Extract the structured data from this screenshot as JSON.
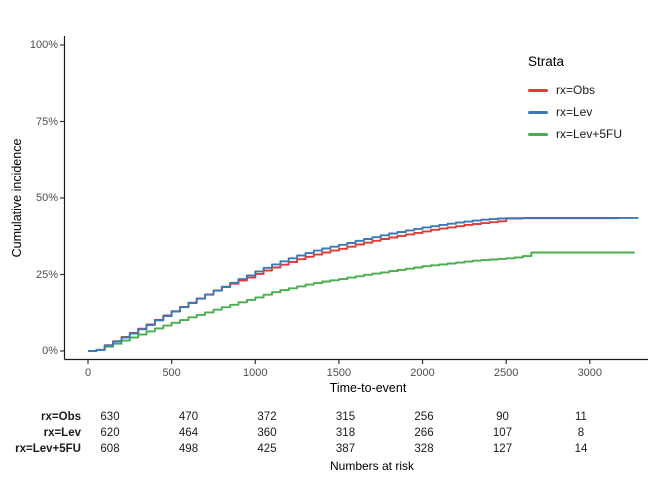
{
  "chart_data": {
    "type": "line",
    "subtype": "step-function-cumulative-incidence",
    "title": "",
    "xlabel": "Time-to-event",
    "ylabel": "Cumulative incidence",
    "legend_title": "Strata",
    "legend_position": "right",
    "grid": false,
    "xlim": [
      0,
      3350
    ],
    "ylim": [
      0,
      100
    ],
    "x_ticks": [
      0,
      500,
      1000,
      1500,
      2000,
      2500,
      3000
    ],
    "y_ticks": [
      {
        "value": 0,
        "label": "0%"
      },
      {
        "value": 25,
        "label": "25%"
      },
      {
        "value": 50,
        "label": "50%"
      },
      {
        "value": 75,
        "label": "75%"
      },
      {
        "value": 100,
        "label": "100%"
      }
    ],
    "series": [
      {
        "name": "rx=Obs",
        "color": "#e03b35",
        "points": [
          [
            0,
            0
          ],
          [
            50,
            0.4
          ],
          [
            100,
            1.9
          ],
          [
            150,
            3.2
          ],
          [
            200,
            4.6
          ],
          [
            250,
            5.9
          ],
          [
            300,
            7.3
          ],
          [
            350,
            8.7
          ],
          [
            400,
            10.2
          ],
          [
            450,
            11.6
          ],
          [
            500,
            13.0
          ],
          [
            550,
            14.4
          ],
          [
            600,
            15.8
          ],
          [
            650,
            17.2
          ],
          [
            700,
            18.5
          ],
          [
            750,
            19.8
          ],
          [
            800,
            20.9
          ],
          [
            850,
            22.0
          ],
          [
            900,
            23.0
          ],
          [
            950,
            24.0
          ],
          [
            1000,
            25.2
          ],
          [
            1050,
            26.3
          ],
          [
            1100,
            27.3
          ],
          [
            1150,
            28.2
          ],
          [
            1200,
            29.1
          ],
          [
            1250,
            30.0
          ],
          [
            1300,
            30.8
          ],
          [
            1350,
            31.5
          ],
          [
            1400,
            32.2
          ],
          [
            1450,
            32.8
          ],
          [
            1500,
            33.4
          ],
          [
            1550,
            34.1
          ],
          [
            1600,
            34.8
          ],
          [
            1650,
            35.4
          ],
          [
            1700,
            36.0
          ],
          [
            1750,
            36.6
          ],
          [
            1800,
            37.1
          ],
          [
            1850,
            37.6
          ],
          [
            1900,
            38.1
          ],
          [
            1950,
            38.6
          ],
          [
            2000,
            39.1
          ],
          [
            2050,
            39.6
          ],
          [
            2100,
            40.0
          ],
          [
            2150,
            40.4
          ],
          [
            2200,
            40.8
          ],
          [
            2250,
            41.2
          ],
          [
            2300,
            41.5
          ],
          [
            2350,
            41.8
          ],
          [
            2400,
            42.1
          ],
          [
            2450,
            42.4
          ],
          [
            2500,
            43.3
          ],
          [
            2600,
            43.4
          ],
          [
            3175,
            43.4
          ]
        ]
      },
      {
        "name": "rx=Lev",
        "color": "#3d79b7",
        "points": [
          [
            0,
            0
          ],
          [
            50,
            0.3
          ],
          [
            100,
            1.8
          ],
          [
            150,
            3.1
          ],
          [
            200,
            4.4
          ],
          [
            250,
            5.7
          ],
          [
            300,
            7.1
          ],
          [
            350,
            8.5
          ],
          [
            400,
            10.0
          ],
          [
            450,
            11.4
          ],
          [
            500,
            12.9
          ],
          [
            550,
            14.3
          ],
          [
            600,
            15.7
          ],
          [
            650,
            17.1
          ],
          [
            700,
            18.4
          ],
          [
            750,
            19.7
          ],
          [
            800,
            21.0
          ],
          [
            850,
            22.3
          ],
          [
            900,
            23.5
          ],
          [
            950,
            24.7
          ],
          [
            1000,
            26.0
          ],
          [
            1050,
            27.2
          ],
          [
            1100,
            28.3
          ],
          [
            1150,
            29.3
          ],
          [
            1200,
            30.3
          ],
          [
            1250,
            31.2
          ],
          [
            1300,
            32.0
          ],
          [
            1350,
            32.8
          ],
          [
            1400,
            33.5
          ],
          [
            1450,
            34.1
          ],
          [
            1500,
            34.7
          ],
          [
            1550,
            35.3
          ],
          [
            1600,
            36.0
          ],
          [
            1650,
            36.6
          ],
          [
            1700,
            37.2
          ],
          [
            1750,
            37.8
          ],
          [
            1800,
            38.4
          ],
          [
            1850,
            38.9
          ],
          [
            1900,
            39.4
          ],
          [
            1950,
            39.9
          ],
          [
            2000,
            40.4
          ],
          [
            2050,
            40.8
          ],
          [
            2100,
            41.2
          ],
          [
            2150,
            41.6
          ],
          [
            2200,
            42.0
          ],
          [
            2250,
            42.3
          ],
          [
            2300,
            42.6
          ],
          [
            2350,
            42.9
          ],
          [
            2400,
            43.1
          ],
          [
            2450,
            43.3
          ],
          [
            2500,
            43.4
          ],
          [
            2600,
            43.5
          ],
          [
            3290,
            43.5
          ]
        ]
      },
      {
        "name": "rx=Lev+5FU",
        "color": "#4bae4c",
        "points": [
          [
            0,
            0
          ],
          [
            50,
            0.3
          ],
          [
            100,
            1.4
          ],
          [
            150,
            2.4
          ],
          [
            200,
            3.4
          ],
          [
            250,
            4.4
          ],
          [
            300,
            5.4
          ],
          [
            350,
            6.4
          ],
          [
            400,
            7.4
          ],
          [
            450,
            8.3
          ],
          [
            500,
            9.2
          ],
          [
            550,
            10.1
          ],
          [
            600,
            11.0
          ],
          [
            650,
            11.8
          ],
          [
            700,
            12.6
          ],
          [
            750,
            13.5
          ],
          [
            800,
            14.3
          ],
          [
            850,
            15.1
          ],
          [
            900,
            15.9
          ],
          [
            950,
            16.7
          ],
          [
            1000,
            17.5
          ],
          [
            1050,
            18.4
          ],
          [
            1100,
            19.2
          ],
          [
            1150,
            19.9
          ],
          [
            1200,
            20.5
          ],
          [
            1250,
            21.1
          ],
          [
            1300,
            21.7
          ],
          [
            1350,
            22.2
          ],
          [
            1400,
            22.7
          ],
          [
            1450,
            23.1
          ],
          [
            1500,
            23.5
          ],
          [
            1550,
            24.0
          ],
          [
            1600,
            24.4
          ],
          [
            1650,
            24.9
          ],
          [
            1700,
            25.3
          ],
          [
            1750,
            25.7
          ],
          [
            1800,
            26.1
          ],
          [
            1850,
            26.5
          ],
          [
            1900,
            26.9
          ],
          [
            1950,
            27.3
          ],
          [
            2000,
            27.7
          ],
          [
            2050,
            28.0
          ],
          [
            2100,
            28.3
          ],
          [
            2150,
            28.6
          ],
          [
            2200,
            28.9
          ],
          [
            2250,
            29.2
          ],
          [
            2300,
            29.5
          ],
          [
            2350,
            29.7
          ],
          [
            2400,
            29.9
          ],
          [
            2450,
            30.1
          ],
          [
            2500,
            30.3
          ],
          [
            2550,
            30.6
          ],
          [
            2600,
            31.0
          ],
          [
            2650,
            32.2
          ],
          [
            3265,
            32.4
          ]
        ]
      }
    ],
    "numbers_at_risk": {
      "caption": "Numbers at risk",
      "times": [
        0,
        500,
        1000,
        1500,
        2000,
        2500,
        3000
      ],
      "rows": [
        {
          "label": "rx=Obs",
          "counts": [
            630,
            470,
            372,
            315,
            256,
            90,
            11
          ]
        },
        {
          "label": "rx=Lev",
          "counts": [
            620,
            464,
            360,
            318,
            266,
            107,
            8
          ]
        },
        {
          "label": "rx=Lev+5FU",
          "counts": [
            608,
            498,
            425,
            387,
            328,
            127,
            14
          ]
        }
      ]
    }
  }
}
